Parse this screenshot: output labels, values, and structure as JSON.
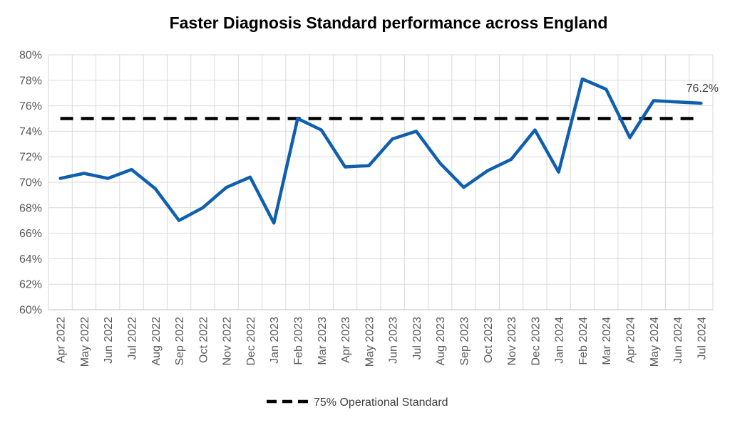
{
  "chart_data": {
    "type": "line",
    "title": "Faster Diagnosis Standard performance across England",
    "xlabel": "",
    "ylabel": "",
    "ylim": [
      60,
      80
    ],
    "y_ticks": [
      "60%",
      "62%",
      "64%",
      "66%",
      "68%",
      "70%",
      "72%",
      "74%",
      "76%",
      "78%",
      "80%"
    ],
    "grid": true,
    "legend_position": "bottom",
    "categories": [
      "Apr 2022",
      "May 2022",
      "Jun 2022",
      "Jul 2022",
      "Aug 2022",
      "Sep 2022",
      "Oct 2022",
      "Nov 2022",
      "Dec 2022",
      "Jan 2023",
      "Feb 2023",
      "Mar 2023",
      "Apr 2023",
      "May 2023",
      "Jun 2023",
      "Jul 2023",
      "Aug 2023",
      "Sep 2023",
      "Oct 2023",
      "Nov 2023",
      "Dec 2023",
      "Jan 2024",
      "Feb 2024",
      "Mar 2024",
      "Apr 2024",
      "May 2024",
      "Jun 2024",
      "Jul 2024"
    ],
    "series": [
      {
        "color": "#0F5FAF",
        "values": [
          70.3,
          70.7,
          70.3,
          71.0,
          69.5,
          67.0,
          68.0,
          69.6,
          70.4,
          66.8,
          75.0,
          74.1,
          71.2,
          71.3,
          73.4,
          74.0,
          71.5,
          69.6,
          70.9,
          71.8,
          74.1,
          70.8,
          78.1,
          77.3,
          73.5,
          76.4,
          76.3,
          76.2
        ]
      },
      {
        "name": "75% Operational Standard",
        "color": "#000000",
        "style": "dashed",
        "values": [
          75,
          75,
          75,
          75,
          75,
          75,
          75,
          75,
          75,
          75,
          75,
          75,
          75,
          75,
          75,
          75,
          75,
          75,
          75,
          75,
          75,
          75,
          75,
          75,
          75,
          75,
          75,
          75
        ]
      }
    ],
    "annotations": [
      {
        "category": "Jul 2024",
        "text": "76.2%"
      }
    ]
  }
}
